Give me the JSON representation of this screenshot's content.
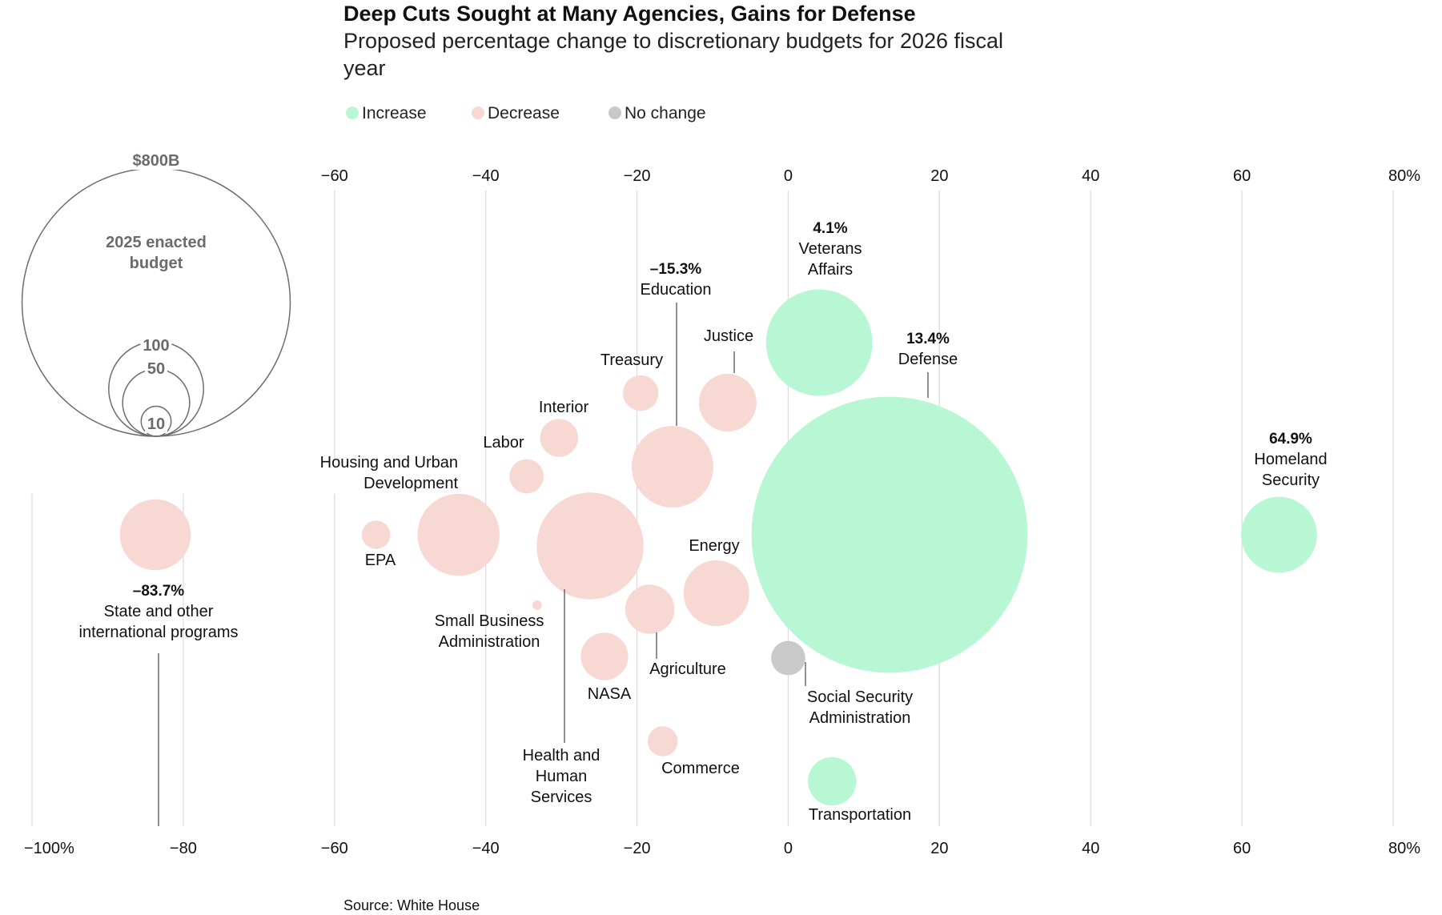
{
  "title": "Deep Cuts Sought at Many Agencies, Gains for Defense",
  "subtitle_lines": [
    "Proposed percentage change to discretionary budgets for 2026 fiscal",
    "year"
  ],
  "legend": [
    {
      "label": "Increase",
      "color": "#b7f7d4"
    },
    {
      "label": "Decrease",
      "color": "#f7d8d2"
    },
    {
      "label": "No change",
      "color": "#c9c9c9"
    }
  ],
  "size_key": {
    "caption_lines": [
      "2025 enacted",
      "budget"
    ],
    "circles": [
      {
        "label": "$800B",
        "budget": 800
      },
      {
        "label": "100",
        "budget": 100
      },
      {
        "label": "50",
        "budget": 50
      },
      {
        "label": "10",
        "budget": 10
      }
    ]
  },
  "source": "Source: White House",
  "colors": {
    "increase": "#b7f7d4",
    "decrease": "#f7d8d2",
    "no_change": "#c9c9c9",
    "grid": "#dedede"
  },
  "chart_data": {
    "type": "scatter",
    "title": "Deep Cuts Sought at Many Agencies, Gains for Defense",
    "subtitle": "Proposed percentage change to discretionary budgets for 2026 fiscal year",
    "xlabel": "",
    "ylabel": "",
    "xlim": [
      -100,
      80
    ],
    "x_ticks": [
      -100,
      -80,
      -60,
      -40,
      -20,
      0,
      20,
      40,
      60,
      80
    ],
    "x_tick_labels_top": [
      "",
      "",
      "−60",
      "−40",
      "−20",
      "0",
      "20",
      "40",
      "60",
      "80%"
    ],
    "x_tick_labels_bottom": [
      "−100%",
      "−80",
      "−60",
      "−40",
      "−20",
      "0",
      "20",
      "40",
      "60",
      "80%"
    ],
    "grid": true,
    "legend_position": "top-left",
    "size_encoding": "2025 enacted budget ($B), bubble area",
    "points": [
      {
        "name": "State and other international programs",
        "label_lines": [
          "State and other",
          "international programs"
        ],
        "value_label": "–83.7%",
        "x": -83.7,
        "budget": 56,
        "category": "decrease"
      },
      {
        "name": "EPA",
        "label_lines": [
          "EPA"
        ],
        "value_label": "",
        "x": -54.5,
        "budget": 9,
        "category": "decrease"
      },
      {
        "name": "Housing and Urban Development",
        "label_lines": [
          "Housing and Urban",
          "Development"
        ],
        "value_label": "",
        "x": -43.6,
        "budget": 75,
        "category": "decrease"
      },
      {
        "name": "Labor",
        "label_lines": [
          "Labor"
        ],
        "value_label": "",
        "x": -34.6,
        "budget": 13,
        "category": "decrease"
      },
      {
        "name": "Interior",
        "label_lines": [
          "Interior"
        ],
        "value_label": "",
        "x": -30.3,
        "budget": 16,
        "category": "decrease"
      },
      {
        "name": "Small Business Administration",
        "label_lines": [
          "Small Business",
          "Administration"
        ],
        "value_label": "",
        "x": -33.2,
        "budget": 1,
        "category": "decrease"
      },
      {
        "name": "Health and Human Services",
        "label_lines": [
          "Health and",
          "Human",
          "Services"
        ],
        "value_label": "",
        "x": -26.2,
        "budget": 127,
        "category": "decrease"
      },
      {
        "name": "NASA",
        "label_lines": [
          "NASA"
        ],
        "value_label": "",
        "x": -24.3,
        "budget": 25,
        "category": "decrease"
      },
      {
        "name": "Treasury",
        "label_lines": [
          "Treasury"
        ],
        "value_label": "",
        "x": -19.5,
        "budget": 14,
        "category": "decrease"
      },
      {
        "name": "Agriculture",
        "label_lines": [
          "Agriculture"
        ],
        "value_label": "",
        "x": -18.3,
        "budget": 27,
        "category": "decrease"
      },
      {
        "name": "Commerce",
        "label_lines": [
          "Commerce"
        ],
        "value_label": "",
        "x": -16.6,
        "budget": 10,
        "category": "decrease"
      },
      {
        "name": "Education",
        "label_lines": [
          "Education"
        ],
        "value_label": "–15.3%",
        "x": -15.3,
        "budget": 74,
        "category": "decrease"
      },
      {
        "name": "Energy",
        "label_lines": [
          "Energy"
        ],
        "value_label": "",
        "x": -9.5,
        "budget": 48,
        "category": "decrease"
      },
      {
        "name": "Justice",
        "label_lines": [
          "Justice"
        ],
        "value_label": "",
        "x": -8.0,
        "budget": 37,
        "category": "decrease"
      },
      {
        "name": "Social Security Administration",
        "label_lines": [
          "Social Security",
          "Administration"
        ],
        "value_label": "",
        "x": 0.0,
        "budget": 13,
        "category": "no_change"
      },
      {
        "name": "Veterans Affairs",
        "label_lines": [
          "Veterans",
          "Affairs"
        ],
        "value_label": "4.1%",
        "x": 4.1,
        "budget": 126,
        "category": "increase"
      },
      {
        "name": "Transportation",
        "label_lines": [
          "Transportation"
        ],
        "value_label": "",
        "x": 5.8,
        "budget": 26,
        "category": "increase"
      },
      {
        "name": "Defense",
        "label_lines": [
          "Defense"
        ],
        "value_label": "13.4%",
        "x": 13.4,
        "budget": 848,
        "category": "increase"
      },
      {
        "name": "Homeland Security",
        "label_lines": [
          "Homeland",
          "Security"
        ],
        "value_label": "64.9%",
        "x": 64.9,
        "budget": 64,
        "category": "increase"
      }
    ]
  }
}
